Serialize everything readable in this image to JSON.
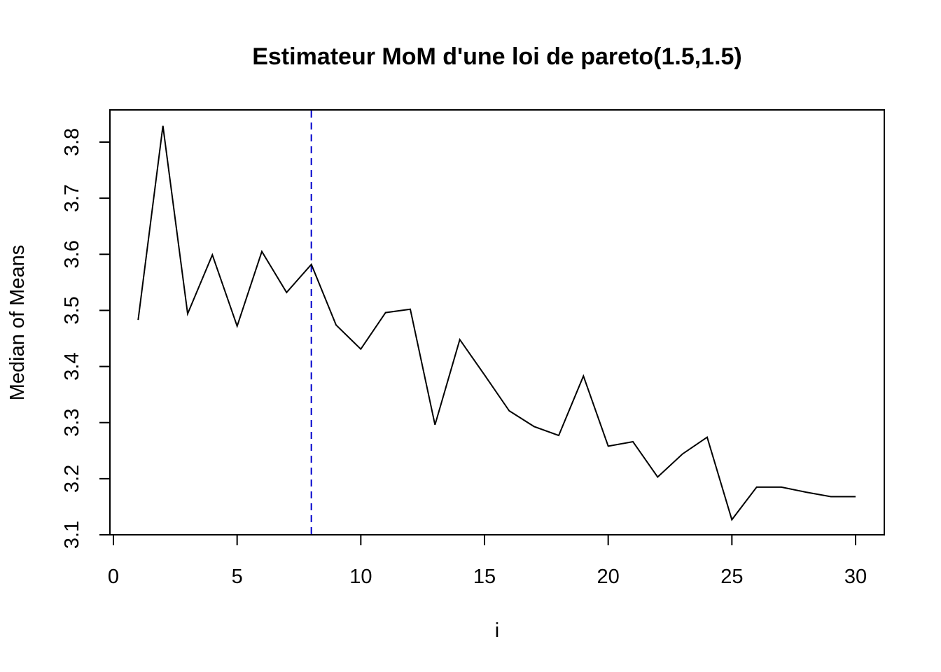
{
  "chart_data": {
    "type": "line",
    "title": "Estimateur MoM d'une loi de pareto(1.5,1.5)",
    "xlabel": "i",
    "ylabel": "Median of Means",
    "xlim": [
      0,
      30
    ],
    "ylim": [
      3.1,
      3.8
    ],
    "x_ticks": [
      0,
      5,
      10,
      15,
      20,
      25,
      30
    ],
    "y_ticks": [
      3.1,
      3.2,
      3.3,
      3.4,
      3.5,
      3.6,
      3.7,
      3.8
    ],
    "x_tick_labels": [
      "0",
      "5",
      "10",
      "15",
      "20",
      "25",
      "30"
    ],
    "y_tick_labels": [
      "3.1",
      "3.2",
      "3.3",
      "3.4",
      "3.5",
      "3.6",
      "3.7",
      "3.8"
    ],
    "grid": false,
    "series": [
      {
        "color": "#000000",
        "x": [
          1,
          2,
          3,
          4,
          5,
          6,
          7,
          8,
          9,
          10,
          11,
          12,
          13,
          14,
          15,
          16,
          17,
          18,
          19,
          20,
          21,
          22,
          23,
          24,
          25,
          26,
          27,
          28,
          29,
          30
        ],
        "values": [
          3.483,
          3.829,
          3.494,
          3.599,
          3.472,
          3.605,
          3.532,
          3.582,
          3.474,
          3.431,
          3.496,
          3.502,
          3.296,
          3.448,
          3.385,
          3.321,
          3.293,
          3.277,
          3.383,
          3.258,
          3.266,
          3.203,
          3.244,
          3.274,
          3.127,
          3.185,
          3.185,
          3.176,
          3.168,
          3.168
        ]
      }
    ],
    "vline": {
      "x": 8,
      "color": "#0000cc",
      "style": "dashed"
    }
  }
}
